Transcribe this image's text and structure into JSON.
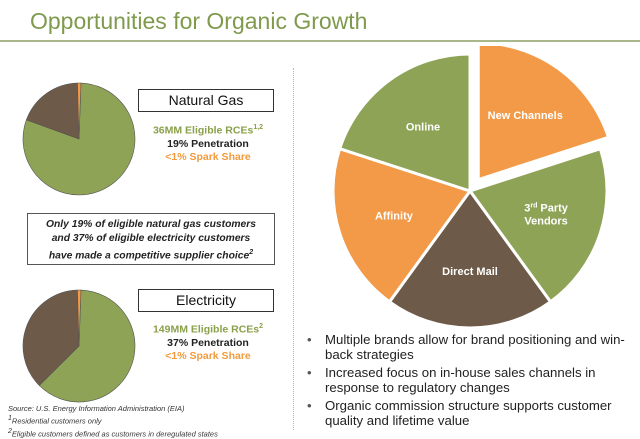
{
  "title": "Opportunities for Organic Growth",
  "natural_gas": {
    "label": "Natural Gas",
    "eligible": "36MM Eligible RCEs",
    "eligible_sup": "1,2",
    "penetration": "19% Penetration",
    "spark_share": "<1% Spark Share"
  },
  "electricity": {
    "label": "Electricity",
    "eligible": "149MM Eligible RCEs",
    "eligible_sup": "2",
    "penetration": "37% Penetration",
    "spark_share": "<1% Spark Share"
  },
  "callout": {
    "line1": "Only 19% of eligible natural gas customers",
    "line2": "and 37% of eligible electricity customers",
    "line3": "have made a competitive supplier choice",
    "line3_sup": "2"
  },
  "source": {
    "line1": "Source: U.S. Energy Information Administration (EIA)",
    "line2_sup": "1",
    "line2": "Residential customers only",
    "line3_sup": "2",
    "line3": "Eligible customers defined as customers in deregulated states"
  },
  "bullets": [
    "Multiple brands allow for brand positioning and win-back strategies",
    "Increased focus on in-house sales channels in response to regulatory changes",
    "Organic commission structure supports customer quality and lifetime value"
  ],
  "colors": {
    "green": "#8ea356",
    "brown": "#6e5a48",
    "orange": "#f29a48",
    "title": "#7f9a4d"
  },
  "chart_data": [
    {
      "type": "pie",
      "name": "natural-gas-pie",
      "slices": [
        {
          "label": "",
          "value": 80,
          "color": "#8ea356"
        },
        {
          "label": "",
          "value": 19,
          "color": "#6e5a48"
        },
        {
          "label": "",
          "value": 1,
          "color": "#f29a48"
        }
      ]
    },
    {
      "type": "pie",
      "name": "electricity-pie",
      "slices": [
        {
          "label": "",
          "value": 62,
          "color": "#8ea356"
        },
        {
          "label": "",
          "value": 37,
          "color": "#6e5a48"
        },
        {
          "label": "",
          "value": 1,
          "color": "#f29a48"
        }
      ]
    },
    {
      "type": "pie",
      "name": "sales-channels-pie",
      "slices": [
        {
          "label": "New Channels",
          "label_sup": "",
          "value": 20,
          "color": "#f29a48",
          "exploded": true
        },
        {
          "label": "3",
          "label_sup": "rd",
          "label_rest": " Party",
          "label2": "Vendors",
          "value": 20,
          "color": "#8ea356"
        },
        {
          "label": "Direct Mail",
          "value": 20,
          "color": "#6e5a48"
        },
        {
          "label": "Affinity",
          "value": 20,
          "color": "#f29a48"
        },
        {
          "label": "Online",
          "value": 20,
          "color": "#8ea356"
        }
      ]
    }
  ]
}
